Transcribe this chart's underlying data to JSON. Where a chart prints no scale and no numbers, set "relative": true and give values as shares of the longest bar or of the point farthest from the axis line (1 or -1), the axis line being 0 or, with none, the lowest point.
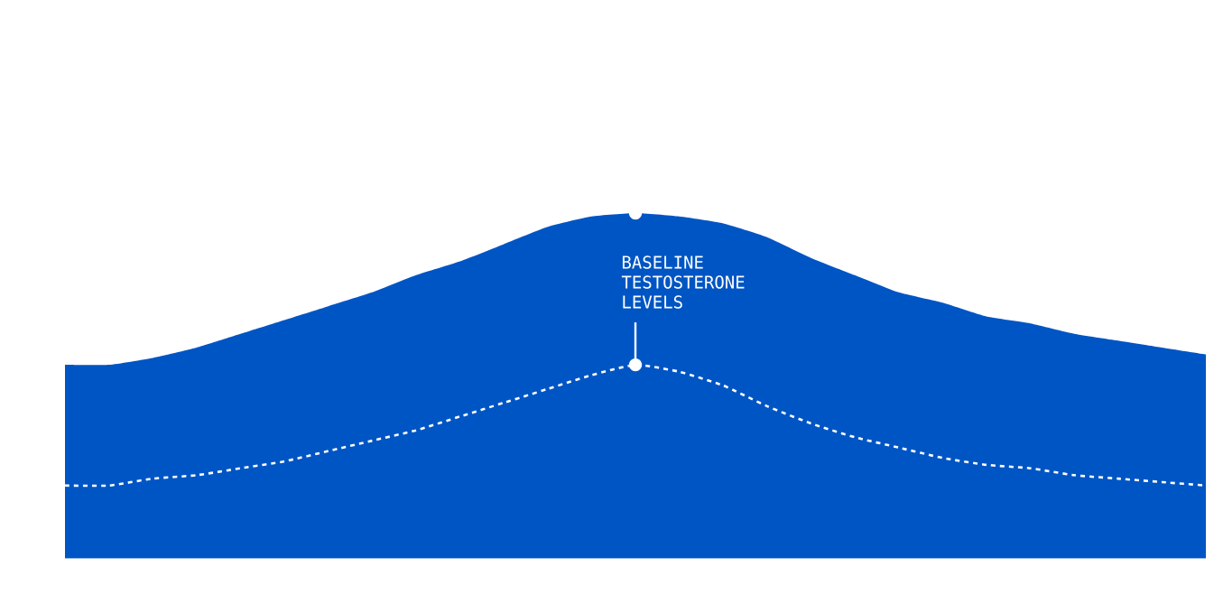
{
  "chart_data": {
    "type": "area",
    "relative": true,
    "categories": [
      null,
      null,
      null,
      null,
      null,
      null,
      null,
      null,
      null,
      null,
      null,
      null,
      null,
      null,
      null,
      null,
      null,
      null,
      null,
      null,
      null,
      null,
      null,
      null,
      null,
      null,
      null
    ],
    "series": [
      {
        "color": "#0055c4",
        "values": [
          0.56,
          0.56,
          0.58,
          0.61,
          0.65,
          0.69,
          0.73,
          0.77,
          0.82,
          0.86,
          0.91,
          0.96,
          0.99,
          1,
          0.99,
          0.97,
          0.93,
          0.87,
          0.82,
          0.77,
          0.74,
          0.7,
          0.68,
          0.65,
          0.63,
          0.61,
          0.59
        ]
      },
      {
        "type": "line",
        "color": "#ffffff",
        "line_style": "dotted",
        "values": [
          0.21,
          0.21,
          0.23,
          0.24,
          0.26,
          0.28,
          0.31,
          0.34,
          0.37,
          0.41,
          0.45,
          0.49,
          0.53,
          0.56,
          0.54,
          0.5,
          0.44,
          0.39,
          0.35,
          0.32,
          0.29,
          0.27,
          0.26,
          0.24,
          0.23,
          0.22,
          0.21
        ]
      }
    ],
    "annotations": [
      "BASELINE TESTOSTERONE LEVELS"
    ]
  }
}
